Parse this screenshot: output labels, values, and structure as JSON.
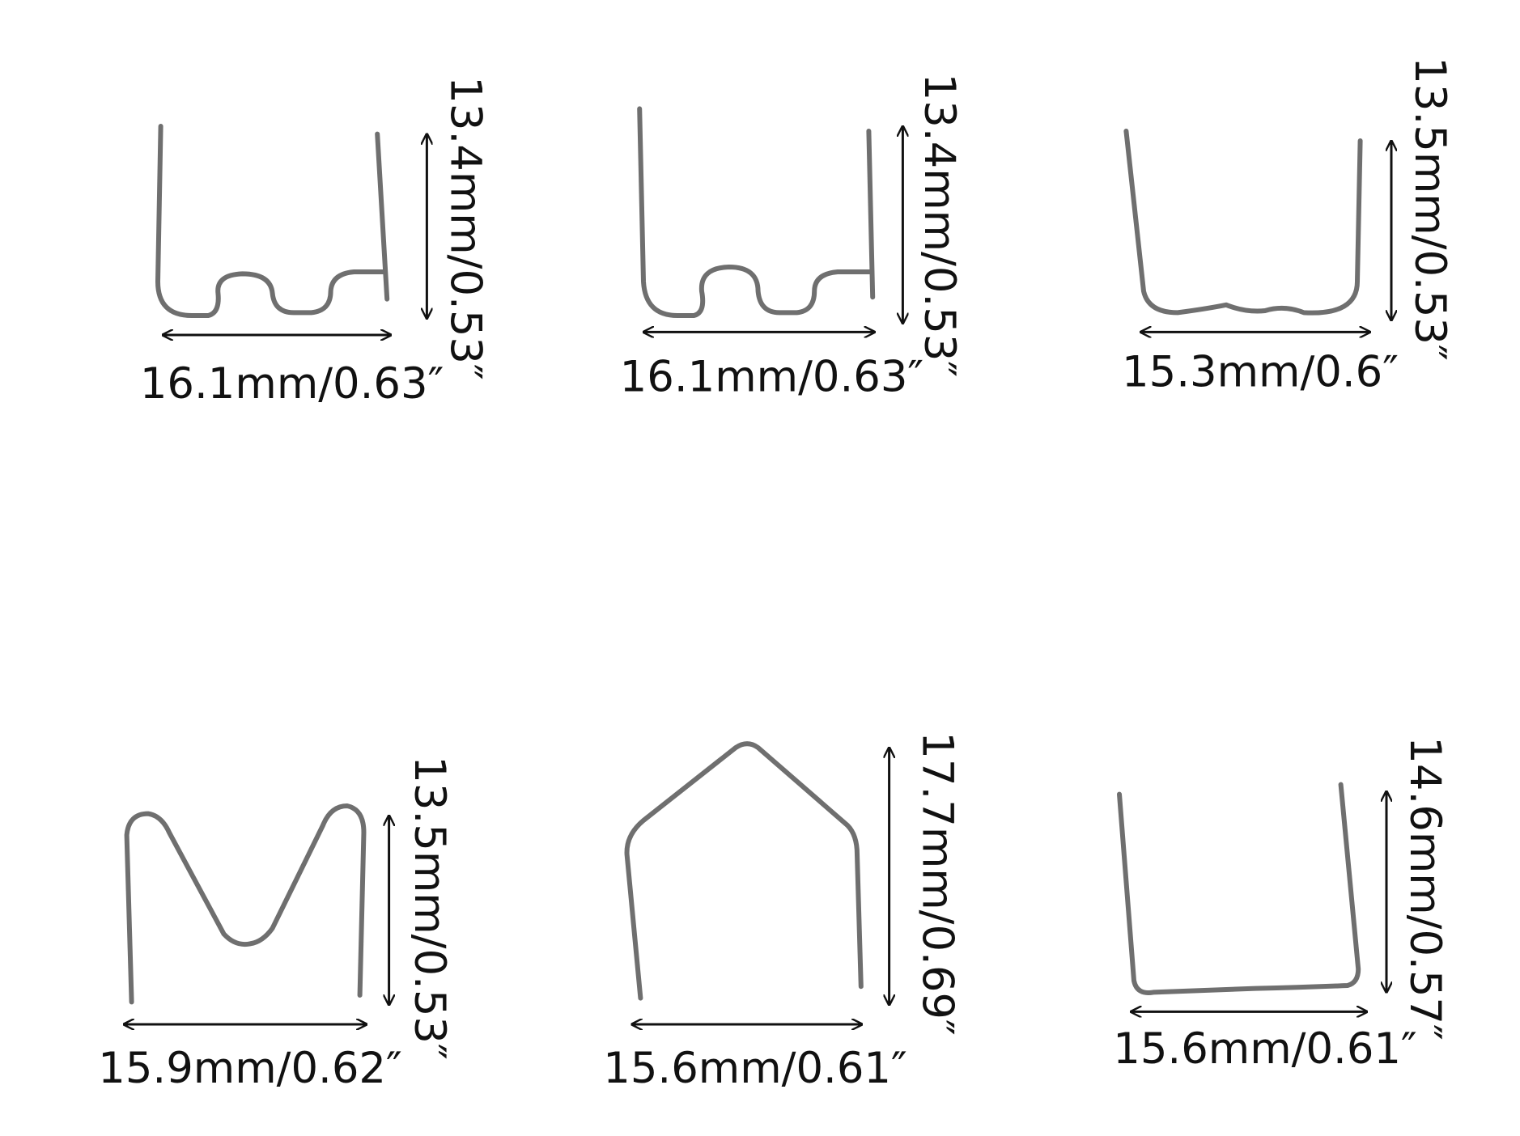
{
  "items": [
    {
      "width_label": "16.1mm/0.63″",
      "height_label": "13.4mm/0.53″"
    },
    {
      "width_label": "16.1mm/0.63″",
      "height_label": "13.4mm/0.53″"
    },
    {
      "width_label": "15.3mm/0.6″",
      "height_label": "13.5mm/0.53″"
    },
    {
      "width_label": "15.9mm/0.62″",
      "height_label": "13.5mm/0.53″"
    },
    {
      "width_label": "15.6mm/0.61″",
      "height_label": "17.7mm/0.69″"
    },
    {
      "width_label": "15.6mm/0.61″",
      "height_label": "14.6mm/0.57″"
    }
  ]
}
